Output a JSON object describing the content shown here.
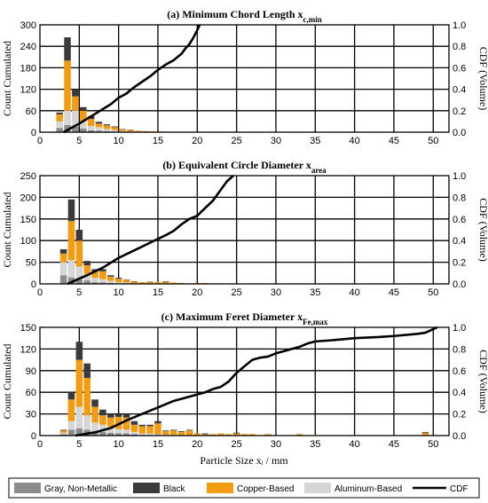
{
  "colors": {
    "gray": "#8c8c8c",
    "black": "#3a3a3a",
    "copper": "#f39c12",
    "aluminum": "#d6d6d6",
    "cdf": "#000000"
  },
  "xlabel": "Particle Size xᵢ / mm",
  "legend": [
    "Gray, Non-Metallic",
    "Black",
    "Copper-Based",
    "Aluminum-Based",
    "CDF"
  ],
  "chart_data": [
    {
      "type": "bar",
      "title": "(a) Minimum Chord Length x",
      "title_sub": "c,min",
      "ylabel": "Count Cumulated",
      "y2label": "CDF (Volume)",
      "xlim": [
        0,
        52
      ],
      "ylim": [
        0,
        300
      ],
      "yticks": [
        0,
        60,
        120,
        180,
        240,
        300
      ],
      "y2ticks": [
        "0.0",
        "0.2",
        "0.4",
        "0.6",
        "0.8",
        "1.0"
      ],
      "xticks": [
        0,
        5,
        10,
        15,
        20,
        25,
        30,
        35,
        40,
        45,
        50
      ],
      "x": [
        2.5,
        3.5,
        4.5,
        5.5,
        6.5,
        7.5,
        8.5,
        9.5,
        10.5,
        11.5,
        12.5,
        13.5,
        14.5,
        15.5,
        18.5,
        20.0
      ],
      "series": [
        {
          "name": "Gray, Non-Metallic",
          "values": [
            12,
            20,
            15,
            10,
            5,
            4,
            3,
            2,
            1,
            1,
            0,
            0,
            0,
            0,
            0,
            0
          ]
        },
        {
          "name": "Aluminum-Based",
          "values": [
            18,
            40,
            45,
            20,
            12,
            10,
            6,
            4,
            2,
            1,
            1,
            1,
            0,
            0,
            0,
            0
          ]
        },
        {
          "name": "Copper-Based",
          "values": [
            20,
            140,
            40,
            30,
            20,
            10,
            10,
            8,
            5,
            4,
            3,
            2,
            2,
            2,
            1,
            1
          ]
        },
        {
          "name": "Black",
          "values": [
            5,
            65,
            20,
            10,
            8,
            5,
            3,
            2,
            1,
            1,
            0,
            0,
            0,
            0,
            0,
            0
          ]
        }
      ],
      "cdf": {
        "x": [
          3,
          5,
          7,
          9,
          10,
          11,
          12,
          13,
          14,
          15,
          16,
          17,
          18,
          18.5,
          19,
          19.5,
          20,
          20.3
        ],
        "y": [
          0.0,
          0.08,
          0.17,
          0.26,
          0.32,
          0.36,
          0.42,
          0.47,
          0.52,
          0.58,
          0.63,
          0.67,
          0.73,
          0.78,
          0.82,
          0.88,
          0.95,
          1.0
        ]
      }
    },
    {
      "type": "bar",
      "title": "(b) Equivalent Circle Diameter x",
      "title_sub": "area",
      "ylabel": "Count Cumulated",
      "y2label": "CDF (Volume)",
      "xlim": [
        0,
        52
      ],
      "ylim": [
        0,
        250
      ],
      "yticks": [
        0,
        50,
        100,
        150,
        200,
        250
      ],
      "y2ticks": [
        "0.0",
        "0.2",
        "0.4",
        "0.6",
        "0.8",
        "1.0"
      ],
      "xticks": [
        0,
        5,
        10,
        15,
        20,
        25,
        30,
        35,
        40,
        45,
        50
      ],
      "x": [
        3.0,
        4.0,
        5.0,
        6.0,
        7.0,
        8.0,
        9.0,
        10.0,
        11.0,
        12.0,
        13.0,
        14.0,
        15.0,
        16.0,
        17.0,
        18.0,
        19.0,
        20.0,
        21.0,
        22.0,
        23.5
      ],
      "series": [
        {
          "name": "Gray, Non-Metallic",
          "values": [
            20,
            15,
            10,
            8,
            4,
            3,
            2,
            1,
            1,
            0,
            0,
            0,
            0,
            0,
            0,
            0,
            0,
            0,
            0,
            0,
            0
          ]
        },
        {
          "name": "Aluminum-Based",
          "values": [
            30,
            40,
            30,
            15,
            10,
            8,
            5,
            3,
            2,
            1,
            1,
            0,
            1,
            0,
            0,
            0,
            0,
            0,
            0,
            0,
            0
          ]
        },
        {
          "name": "Copper-Based",
          "values": [
            20,
            90,
            60,
            20,
            15,
            18,
            10,
            8,
            6,
            4,
            3,
            4,
            3,
            5,
            3,
            2,
            1,
            2,
            2,
            1,
            1
          ]
        },
        {
          "name": "Black",
          "values": [
            10,
            50,
            25,
            10,
            5,
            5,
            3,
            2,
            1,
            1,
            0,
            1,
            0,
            1,
            0,
            0,
            0,
            0,
            0,
            0,
            0
          ]
        }
      ],
      "cdf": {
        "x": [
          3.5,
          6,
          8,
          10,
          12,
          14,
          16,
          17,
          18,
          19,
          20,
          21,
          22,
          23,
          23.8,
          24.6
        ],
        "y": [
          0.0,
          0.08,
          0.15,
          0.24,
          0.31,
          0.38,
          0.45,
          0.49,
          0.55,
          0.6,
          0.63,
          0.7,
          0.77,
          0.87,
          0.95,
          1.0
        ]
      }
    },
    {
      "type": "bar",
      "title": "(c) Maximum Feret Diameter x",
      "title_sub": "Fe,max",
      "ylabel": "Count Cumulated",
      "y2label": "CDF (Volume)",
      "xlim": [
        0,
        52
      ],
      "ylim": [
        0,
        150
      ],
      "yticks": [
        0,
        30,
        60,
        90,
        120,
        150
      ],
      "y2ticks": [
        "0.0",
        "0.2",
        "0.4",
        "0.6",
        "0.8",
        "1.0"
      ],
      "xticks": [
        0,
        5,
        10,
        15,
        20,
        25,
        30,
        35,
        40,
        45,
        50
      ],
      "x": [
        3,
        4,
        5,
        6,
        7,
        8,
        9,
        10,
        11,
        12,
        13,
        14,
        15,
        16,
        17,
        18,
        19,
        20,
        21,
        22,
        23,
        24,
        25,
        26,
        27,
        29,
        33,
        49
      ],
      "series": [
        {
          "name": "Gray, Non-Metallic",
          "values": [
            2,
            8,
            10,
            8,
            6,
            5,
            4,
            3,
            3,
            2,
            1,
            1,
            1,
            0,
            0,
            0,
            0,
            0,
            0,
            0,
            0,
            0,
            0,
            0,
            0,
            0,
            0,
            0
          ]
        },
        {
          "name": "Aluminum-Based",
          "values": [
            2,
            12,
            30,
            20,
            12,
            10,
            8,
            6,
            5,
            3,
            2,
            2,
            1,
            1,
            1,
            0,
            0,
            0,
            0,
            0,
            0,
            0,
            0,
            0,
            0,
            0,
            0,
            0
          ]
        },
        {
          "name": "Copper-Based",
          "values": [
            3,
            30,
            65,
            52,
            22,
            13,
            13,
            17,
            17,
            10,
            10,
            10,
            15,
            5,
            6,
            5,
            7,
            3,
            2,
            2,
            3,
            2,
            3,
            2,
            2,
            2,
            2,
            4
          ]
        },
        {
          "name": "Black",
          "values": [
            1,
            10,
            25,
            20,
            10,
            8,
            5,
            4,
            5,
            5,
            2,
            2,
            3,
            1,
            1,
            1,
            1,
            0,
            1,
            0,
            0,
            0,
            1,
            0,
            0,
            0,
            0,
            1
          ]
        }
      ],
      "cdf": {
        "x": [
          4.5,
          7,
          9,
          11,
          13,
          15,
          17,
          19,
          20,
          21,
          22,
          23,
          24,
          25,
          26,
          27,
          28,
          29,
          30,
          31,
          32,
          33,
          34,
          35,
          37,
          40,
          43,
          45,
          48,
          49,
          50.5
        ],
        "y": [
          0.0,
          0.03,
          0.07,
          0.14,
          0.2,
          0.26,
          0.32,
          0.36,
          0.38,
          0.4,
          0.43,
          0.45,
          0.5,
          0.58,
          0.64,
          0.7,
          0.72,
          0.73,
          0.76,
          0.78,
          0.8,
          0.82,
          0.85,
          0.87,
          0.88,
          0.9,
          0.91,
          0.92,
          0.94,
          0.95,
          1.0
        ]
      }
    }
  ]
}
